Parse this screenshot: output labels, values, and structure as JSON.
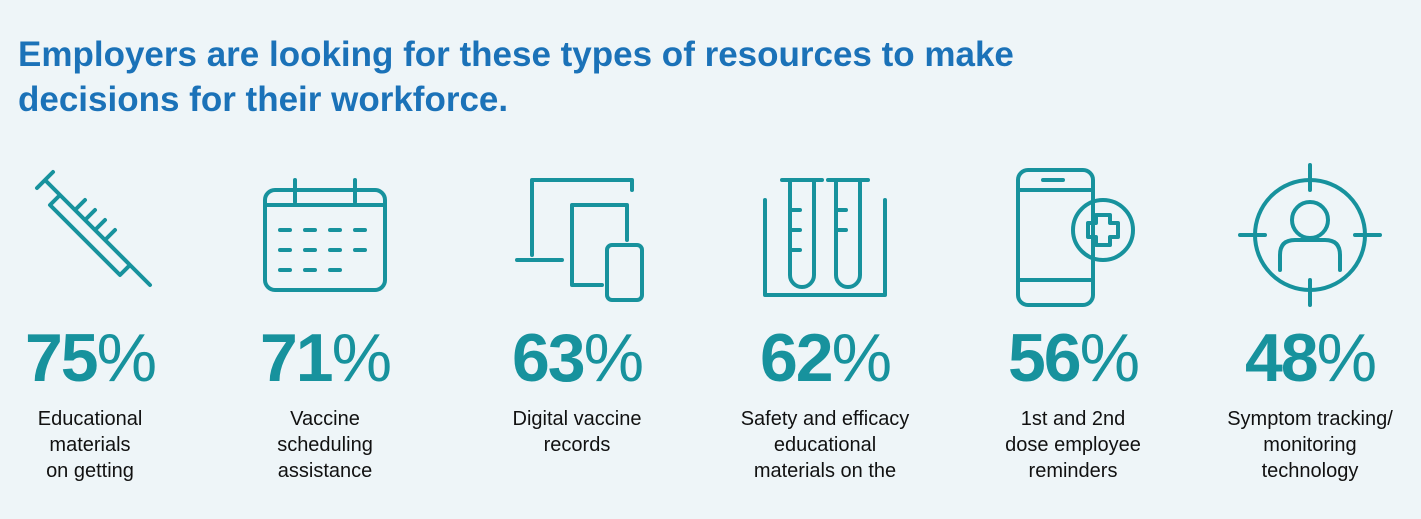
{
  "title": [
    "Employers are looking for these types of resources to make",
    "decisions for their workforce."
  ],
  "items": [
    {
      "value": 75,
      "unit": "%",
      "label": [
        "Educational",
        "materials",
        "on getting"
      ]
    },
    {
      "value": 71,
      "unit": "%",
      "label": [
        "Vaccine",
        "scheduling",
        "assistance"
      ]
    },
    {
      "value": 63,
      "unit": "%",
      "label": [
        "Digital vaccine",
        "records"
      ]
    },
    {
      "value": 62,
      "unit": "%",
      "label": [
        "Safety and efficacy",
        "educational",
        "materials on the"
      ]
    },
    {
      "value": 56,
      "unit": "%",
      "label": [
        "1st and 2nd",
        "dose employee",
        "reminders"
      ]
    },
    {
      "value": 48,
      "unit": "%",
      "label": [
        "Symptom tracking/",
        "monitoring",
        "technology"
      ]
    }
  ]
}
